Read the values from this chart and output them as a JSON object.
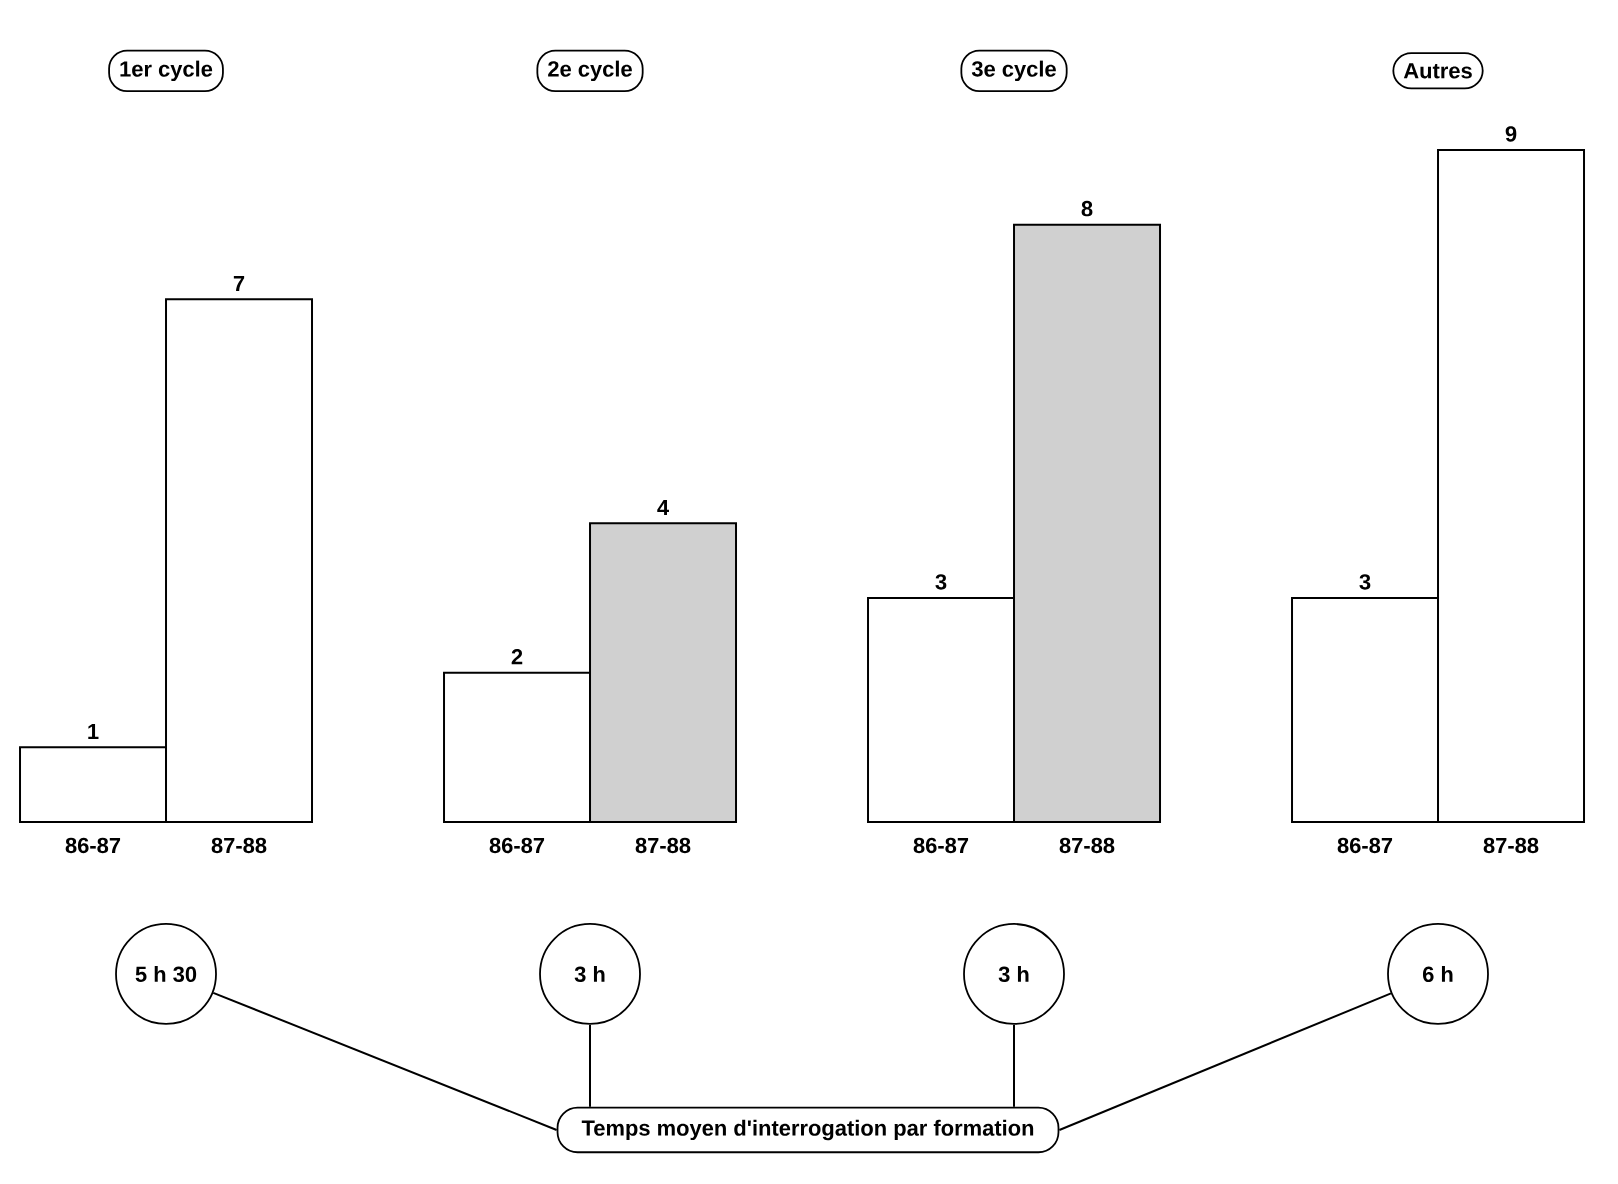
{
  "chart_data": [
    {
      "type": "bar",
      "title": "1er cycle",
      "categories": [
        "86-87",
        "87-88"
      ],
      "values": [
        1,
        7
      ],
      "colors": [
        "#ffffff",
        "#ffffff"
      ],
      "data_labels": true,
      "annotations": [
        "5 h 30",
        "Temps moyen d'interrogation par formation"
      ]
    },
    {
      "type": "bar",
      "title": "2e cycle",
      "categories": [
        "86-87",
        "87-88"
      ],
      "values": [
        2,
        4
      ],
      "colors": [
        "#ffffff",
        "#d0d0d0"
      ],
      "data_labels": true,
      "annotations": [
        "3 h"
      ]
    },
    {
      "type": "bar",
      "title": "3e cycle",
      "categories": [
        "86-87",
        "87-88"
      ],
      "values": [
        3,
        8
      ],
      "colors": [
        "#ffffff",
        "#d0d0d0"
      ],
      "data_labels": true,
      "annotations": [
        "3 h"
      ]
    },
    {
      "type": "bar",
      "title": "Autres",
      "categories": [
        "86-87",
        "87-88"
      ],
      "values": [
        3,
        9
      ],
      "colors": [
        "#ffffff",
        "#ffffff"
      ],
      "data_labels": true,
      "annotations": [
        "6 h"
      ]
    }
  ]
}
